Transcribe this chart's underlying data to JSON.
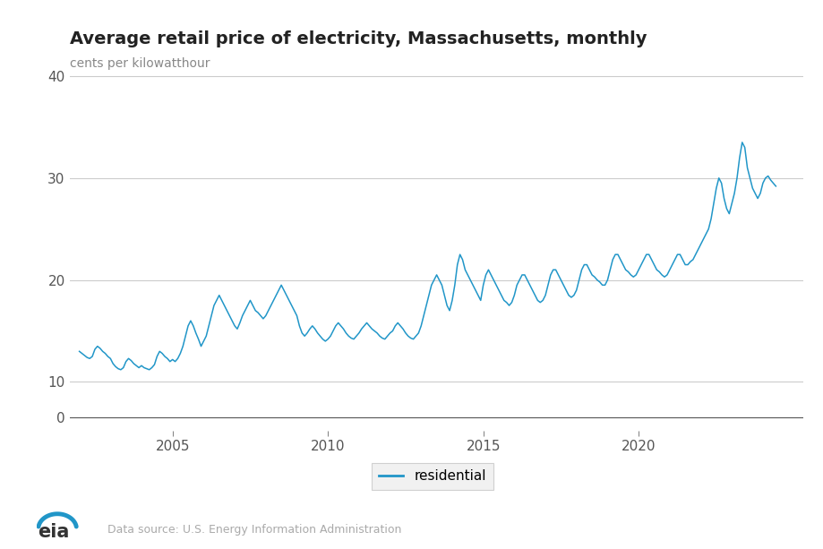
{
  "title": "Average retail price of electricity, Massachusetts, monthly",
  "ylabel": "cents per kilowatthour",
  "line_color": "#2196c8",
  "background_color": "#ffffff",
  "grid_color": "#cccccc",
  "legend_label": "residential",
  "source_text": "Data source: U.S. Energy Information Administration",
  "xlim_start": 2001.7,
  "xlim_end": 2025.3,
  "ylim_main": [
    9.5,
    41
  ],
  "yticks_main": [
    10,
    20,
    30,
    40
  ],
  "x_tick_positions": [
    2005,
    2010,
    2015,
    2020
  ],
  "x_tick_labels": [
    "2005",
    "2010",
    "2015",
    "2020"
  ],
  "years": [
    2002.0,
    2002.083,
    2002.167,
    2002.25,
    2002.333,
    2002.417,
    2002.5,
    2002.583,
    2002.667,
    2002.75,
    2002.833,
    2002.917,
    2003.0,
    2003.083,
    2003.167,
    2003.25,
    2003.333,
    2003.417,
    2003.5,
    2003.583,
    2003.667,
    2003.75,
    2003.833,
    2003.917,
    2004.0,
    2004.083,
    2004.167,
    2004.25,
    2004.333,
    2004.417,
    2004.5,
    2004.583,
    2004.667,
    2004.75,
    2004.833,
    2004.917,
    2005.0,
    2005.083,
    2005.167,
    2005.25,
    2005.333,
    2005.417,
    2005.5,
    2005.583,
    2005.667,
    2005.75,
    2005.833,
    2005.917,
    2006.0,
    2006.083,
    2006.167,
    2006.25,
    2006.333,
    2006.417,
    2006.5,
    2006.583,
    2006.667,
    2006.75,
    2006.833,
    2006.917,
    2007.0,
    2007.083,
    2007.167,
    2007.25,
    2007.333,
    2007.417,
    2007.5,
    2007.583,
    2007.667,
    2007.75,
    2007.833,
    2007.917,
    2008.0,
    2008.083,
    2008.167,
    2008.25,
    2008.333,
    2008.417,
    2008.5,
    2008.583,
    2008.667,
    2008.75,
    2008.833,
    2008.917,
    2009.0,
    2009.083,
    2009.167,
    2009.25,
    2009.333,
    2009.417,
    2009.5,
    2009.583,
    2009.667,
    2009.75,
    2009.833,
    2009.917,
    2010.0,
    2010.083,
    2010.167,
    2010.25,
    2010.333,
    2010.417,
    2010.5,
    2010.583,
    2010.667,
    2010.75,
    2010.833,
    2010.917,
    2011.0,
    2011.083,
    2011.167,
    2011.25,
    2011.333,
    2011.417,
    2011.5,
    2011.583,
    2011.667,
    2011.75,
    2011.833,
    2011.917,
    2012.0,
    2012.083,
    2012.167,
    2012.25,
    2012.333,
    2012.417,
    2012.5,
    2012.583,
    2012.667,
    2012.75,
    2012.833,
    2012.917,
    2013.0,
    2013.083,
    2013.167,
    2013.25,
    2013.333,
    2013.417,
    2013.5,
    2013.583,
    2013.667,
    2013.75,
    2013.833,
    2013.917,
    2014.0,
    2014.083,
    2014.167,
    2014.25,
    2014.333,
    2014.417,
    2014.5,
    2014.583,
    2014.667,
    2014.75,
    2014.833,
    2014.917,
    2015.0,
    2015.083,
    2015.167,
    2015.25,
    2015.333,
    2015.417,
    2015.5,
    2015.583,
    2015.667,
    2015.75,
    2015.833,
    2015.917,
    2016.0,
    2016.083,
    2016.167,
    2016.25,
    2016.333,
    2016.417,
    2016.5,
    2016.583,
    2016.667,
    2016.75,
    2016.833,
    2016.917,
    2017.0,
    2017.083,
    2017.167,
    2017.25,
    2017.333,
    2017.417,
    2017.5,
    2017.583,
    2017.667,
    2017.75,
    2017.833,
    2017.917,
    2018.0,
    2018.083,
    2018.167,
    2018.25,
    2018.333,
    2018.417,
    2018.5,
    2018.583,
    2018.667,
    2018.75,
    2018.833,
    2018.917,
    2019.0,
    2019.083,
    2019.167,
    2019.25,
    2019.333,
    2019.417,
    2019.5,
    2019.583,
    2019.667,
    2019.75,
    2019.833,
    2019.917,
    2020.0,
    2020.083,
    2020.167,
    2020.25,
    2020.333,
    2020.417,
    2020.5,
    2020.583,
    2020.667,
    2020.75,
    2020.833,
    2020.917,
    2021.0,
    2021.083,
    2021.167,
    2021.25,
    2021.333,
    2021.417,
    2021.5,
    2021.583,
    2021.667,
    2021.75,
    2021.833,
    2021.917,
    2022.0,
    2022.083,
    2022.167,
    2022.25,
    2022.333,
    2022.417,
    2022.5,
    2022.583,
    2022.667,
    2022.75,
    2022.833,
    2022.917,
    2023.0,
    2023.083,
    2023.167,
    2023.25,
    2023.333,
    2023.417,
    2023.5,
    2023.583,
    2023.667,
    2023.75,
    2023.833,
    2023.917,
    2024.0,
    2024.083,
    2024.167,
    2024.25,
    2024.333,
    2024.417
  ],
  "values": [
    13.0,
    12.8,
    12.6,
    12.4,
    12.3,
    12.5,
    13.2,
    13.5,
    13.3,
    13.0,
    12.8,
    12.5,
    12.3,
    11.8,
    11.5,
    11.3,
    11.2,
    11.4,
    12.0,
    12.3,
    12.1,
    11.8,
    11.6,
    11.4,
    11.6,
    11.4,
    11.3,
    11.2,
    11.4,
    11.7,
    12.5,
    13.0,
    12.8,
    12.5,
    12.3,
    12.0,
    12.2,
    12.0,
    12.3,
    12.8,
    13.5,
    14.5,
    15.5,
    16.0,
    15.5,
    14.8,
    14.2,
    13.5,
    14.0,
    14.5,
    15.5,
    16.5,
    17.5,
    18.0,
    18.5,
    18.0,
    17.5,
    17.0,
    16.5,
    16.0,
    15.5,
    15.2,
    15.8,
    16.5,
    17.0,
    17.5,
    18.0,
    17.5,
    17.0,
    16.8,
    16.5,
    16.2,
    16.5,
    17.0,
    17.5,
    18.0,
    18.5,
    19.0,
    19.5,
    19.0,
    18.5,
    18.0,
    17.5,
    17.0,
    16.5,
    15.5,
    14.8,
    14.5,
    14.8,
    15.2,
    15.5,
    15.2,
    14.8,
    14.5,
    14.2,
    14.0,
    14.2,
    14.5,
    15.0,
    15.5,
    15.8,
    15.5,
    15.2,
    14.8,
    14.5,
    14.3,
    14.2,
    14.5,
    14.8,
    15.2,
    15.5,
    15.8,
    15.5,
    15.2,
    15.0,
    14.8,
    14.5,
    14.3,
    14.2,
    14.5,
    14.8,
    15.0,
    15.5,
    15.8,
    15.5,
    15.2,
    14.8,
    14.5,
    14.3,
    14.2,
    14.5,
    14.8,
    15.5,
    16.5,
    17.5,
    18.5,
    19.5,
    20.0,
    20.5,
    20.0,
    19.5,
    18.5,
    17.5,
    17.0,
    18.0,
    19.5,
    21.5,
    22.5,
    22.0,
    21.0,
    20.5,
    20.0,
    19.5,
    19.0,
    18.5,
    18.0,
    19.5,
    20.5,
    21.0,
    20.5,
    20.0,
    19.5,
    19.0,
    18.5,
    18.0,
    17.8,
    17.5,
    17.8,
    18.5,
    19.5,
    20.0,
    20.5,
    20.5,
    20.0,
    19.5,
    19.0,
    18.5,
    18.0,
    17.8,
    18.0,
    18.5,
    19.5,
    20.5,
    21.0,
    21.0,
    20.5,
    20.0,
    19.5,
    19.0,
    18.5,
    18.3,
    18.5,
    19.0,
    20.0,
    21.0,
    21.5,
    21.5,
    21.0,
    20.5,
    20.3,
    20.0,
    19.8,
    19.5,
    19.5,
    20.0,
    21.0,
    22.0,
    22.5,
    22.5,
    22.0,
    21.5,
    21.0,
    20.8,
    20.5,
    20.3,
    20.5,
    21.0,
    21.5,
    22.0,
    22.5,
    22.5,
    22.0,
    21.5,
    21.0,
    20.8,
    20.5,
    20.3,
    20.5,
    21.0,
    21.5,
    22.0,
    22.5,
    22.5,
    22.0,
    21.5,
    21.5,
    21.8,
    22.0,
    22.5,
    23.0,
    23.5,
    24.0,
    24.5,
    25.0,
    26.0,
    27.5,
    29.0,
    30.0,
    29.5,
    28.0,
    27.0,
    26.5,
    27.5,
    28.5,
    30.0,
    32.0,
    33.5,
    33.0,
    31.0,
    30.0,
    29.0,
    28.5,
    28.0,
    28.5,
    29.5,
    30.0,
    30.2,
    29.8,
    29.5,
    29.2
  ]
}
